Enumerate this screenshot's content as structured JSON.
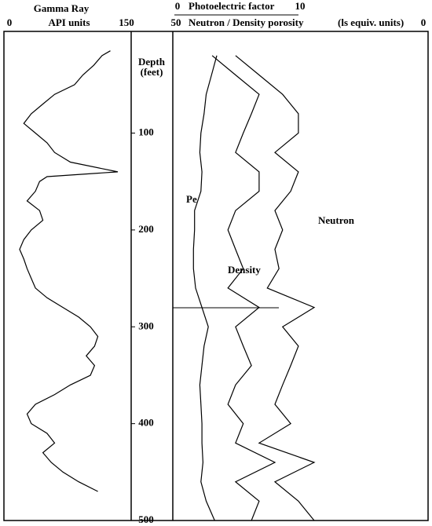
{
  "chart_data": [
    {
      "type": "log-track",
      "title": "Gamma Ray",
      "xlabel": "API units",
      "xlim": [
        0,
        150
      ],
      "xticks": [
        0,
        150
      ],
      "ylim": [
        -5,
        500
      ],
      "yticks": [
        100,
        200,
        300,
        400,
        500
      ],
      "depth_label": "Depth",
      "depth_unit": "(feet)",
      "depth": [
        15,
        20,
        30,
        40,
        50,
        60,
        70,
        80,
        90,
        100,
        110,
        120,
        130,
        140,
        145,
        150,
        160,
        170,
        180,
        190,
        200,
        210,
        220,
        230,
        240,
        250,
        260,
        270,
        280,
        290,
        300,
        310,
        320,
        330,
        340,
        350,
        360,
        370,
        380,
        390,
        400,
        410,
        420,
        430,
        440,
        450,
        460,
        470
      ],
      "series": [
        {
          "name": "Gamma Ray",
          "color": "#000000",
          "values": [
            125,
            115,
            105,
            92,
            82,
            58,
            44,
            30,
            21,
            35,
            49,
            58,
            77,
            134,
            49,
            40,
            35,
            25,
            40,
            44,
            30,
            21,
            16,
            21,
            25,
            30,
            35,
            49,
            68,
            87,
            101,
            110,
            106,
            96,
            106,
            101,
            77,
            58,
            35,
            25,
            30,
            49,
            58,
            44,
            54,
            68,
            87,
            110
          ]
        }
      ]
    },
    {
      "type": "log-track",
      "x2label": "Photoelectric factor",
      "xlabel": "Neutron / Density porosity",
      "xunit": "(ls equiv. units)",
      "xlim": [
        50,
        0
      ],
      "xticks": [
        50,
        0
      ],
      "x2lim": [
        0,
        10
      ],
      "x2ticks": [
        0,
        10
      ],
      "ylim": [
        -5,
        500
      ],
      "depth": [
        20,
        40,
        60,
        80,
        100,
        120,
        140,
        160,
        180,
        200,
        220,
        240,
        260,
        280,
        300,
        320,
        340,
        360,
        380,
        400,
        420,
        440,
        460,
        480,
        500
      ],
      "series": [
        {
          "name": "Pe",
          "color": "#000000",
          "axis": "x2",
          "values": [
            4,
            3.5,
            3,
            2.8,
            2.5,
            2.4,
            2.6,
            2.5,
            1.9,
            1.9,
            1.8,
            1.8,
            2.0,
            2.6,
            3.2,
            2.8,
            2.6,
            2.4,
            2.5,
            2.6,
            2.6,
            2.7,
            2.5,
            3.0,
            3.8
          ]
        },
        {
          "name": "Neutron",
          "color": "#000000",
          "values": [
            37.7,
            33.1,
            28.5,
            25.4,
            25.4,
            30,
            25.4,
            26.9,
            30,
            28.5,
            30,
            29.2,
            31.5,
            22.3,
            28.5,
            25.4,
            26.9,
            28.5,
            30,
            26.9,
            33.1,
            22.3,
            30,
            25.4,
            22.3
          ]
        },
        {
          "name": "Density",
          "color": "#000000",
          "values": [
            42.3,
            37.7,
            33.1,
            34.6,
            36.2,
            37.7,
            33.1,
            33.1,
            37.7,
            39.2,
            37.7,
            36.2,
            39.2,
            33.1,
            37.7,
            36.2,
            34.6,
            37.7,
            39.2,
            36.2,
            37.7,
            30,
            37.7,
            33.1,
            34.6
          ]
        }
      ]
    }
  ]
}
